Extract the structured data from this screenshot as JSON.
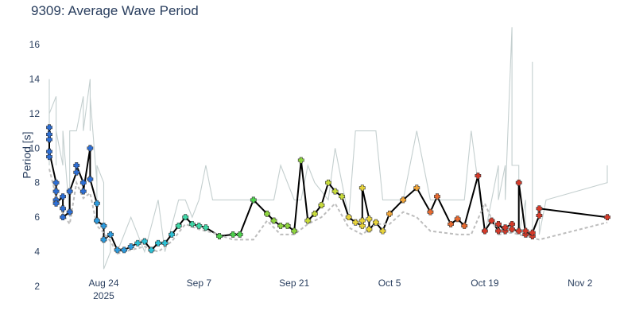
{
  "title": "9309: Average Wave Period",
  "chart_data": {
    "type": "line",
    "title": "9309: Average Wave Period",
    "ylabel": "Period [s]",
    "xlabel": "",
    "x_range": [
      "2025-08-16",
      "2025-11-06"
    ],
    "ylim": [
      2,
      17.2
    ],
    "y_ticks": [
      2,
      4,
      6,
      8,
      10,
      12,
      14,
      16
    ],
    "x_ticks": [
      {
        "date": "2025-08-24",
        "label": "Aug 24",
        "sub": "2025"
      },
      {
        "date": "2025-09-07",
        "label": "Sep 7",
        "sub": ""
      },
      {
        "date": "2025-09-21",
        "label": "Sep 21",
        "sub": ""
      },
      {
        "date": "2025-10-05",
        "label": "Oct 5",
        "sub": ""
      },
      {
        "date": "2025-10-19",
        "label": "Oct 19",
        "sub": ""
      },
      {
        "date": "2025-11-02",
        "label": "Nov 2",
        "sub": ""
      }
    ],
    "colors": {
      "main": "#000000",
      "upper": "#c4cfcf",
      "lower": "#bdbdbd",
      "axis_text": "#2a3f5f"
    },
    "series": [
      {
        "role": "upper-band",
        "style": "solid-gray",
        "x": [
          "2025-08-16",
          "2025-08-16",
          "2025-08-16",
          "2025-08-16",
          "2025-08-16",
          "2025-08-16",
          "2025-08-17",
          "2025-08-17",
          "2025-08-17",
          "2025-08-17",
          "2025-08-18",
          "2025-08-18",
          "2025-08-19",
          "2025-08-19",
          "2025-08-19",
          "2025-08-20",
          "2025-08-20",
          "2025-08-21",
          "2025-08-21",
          "2025-08-22",
          "2025-08-22",
          "2025-08-22",
          "2025-08-23",
          "2025-08-23",
          "2025-08-23",
          "2025-08-24",
          "2025-08-24",
          "2025-08-25",
          "2025-08-25",
          "2025-08-26",
          "2025-08-28",
          "2025-08-30",
          "2025-09-01",
          "2025-09-02",
          "2025-09-04",
          "2025-09-05",
          "2025-09-06",
          "2025-09-07",
          "2025-09-08",
          "2025-09-09",
          "2025-09-12",
          "2025-09-15",
          "2025-09-18",
          "2025-09-19",
          "2025-09-21",
          "2025-09-22",
          "2025-09-23",
          "2025-09-24",
          "2025-09-26",
          "2025-09-27",
          "2025-09-29",
          "2025-09-30",
          "2025-10-01",
          "2025-10-02",
          "2025-10-03",
          "2025-10-04",
          "2025-10-05",
          "2025-10-06",
          "2025-10-07",
          "2025-10-09",
          "2025-10-11",
          "2025-10-12",
          "2025-10-13",
          "2025-10-15",
          "2025-10-16",
          "2025-10-17",
          "2025-10-18",
          "2025-10-19",
          "2025-10-20",
          "2025-10-21",
          "2025-10-21",
          "2025-10-22",
          "2025-10-22",
          "2025-10-23",
          "2025-10-23",
          "2025-10-24",
          "2025-10-24",
          "2025-10-25",
          "2025-10-25",
          "2025-10-26",
          "2025-10-26",
          "2025-10-26",
          "2025-10-27",
          "2025-10-27",
          "2025-10-28",
          "2025-11-06",
          "2025-11-06"
        ],
        "y": [
          9,
          14,
          14,
          13,
          13,
          12,
          13,
          11,
          9,
          11,
          9,
          11,
          6,
          8,
          11,
          11,
          11,
          13,
          11,
          14,
          11,
          13,
          8,
          7,
          9,
          8,
          3,
          4,
          5,
          4,
          6,
          4,
          7,
          4,
          7,
          7,
          6,
          7,
          9,
          7,
          7,
          7,
          7,
          9,
          7,
          7,
          9,
          8,
          7,
          10,
          6,
          11,
          11,
          11,
          11,
          7,
          7,
          7,
          7,
          11,
          7,
          7,
          7,
          7,
          7,
          11,
          8,
          5,
          7,
          9,
          7,
          9,
          7,
          17,
          9,
          9,
          5,
          7,
          5,
          5,
          15,
          5,
          6,
          5,
          7,
          8,
          9
        ]
      },
      {
        "role": "main",
        "style": "solid-black-with-markers",
        "x": [
          "2025-08-16",
          "2025-08-16",
          "2025-08-16",
          "2025-08-16",
          "2025-08-16",
          "2025-08-17",
          "2025-08-17",
          "2025-08-17",
          "2025-08-17",
          "2025-08-18",
          "2025-08-18",
          "2025-08-18",
          "2025-08-19",
          "2025-08-19",
          "2025-08-20",
          "2025-08-20",
          "2025-08-21",
          "2025-08-21",
          "2025-08-22",
          "2025-08-22",
          "2025-08-23",
          "2025-08-23",
          "2025-08-24",
          "2025-08-24",
          "2025-08-25",
          "2025-08-26",
          "2025-08-27",
          "2025-08-28",
          "2025-08-29",
          "2025-08-30",
          "2025-08-31",
          "2025-09-01",
          "2025-09-02",
          "2025-09-03",
          "2025-09-04",
          "2025-09-05",
          "2025-09-06",
          "2025-09-07",
          "2025-09-08",
          "2025-09-10",
          "2025-09-12",
          "2025-09-13",
          "2025-09-15",
          "2025-09-17",
          "2025-09-18",
          "2025-09-19",
          "2025-09-20",
          "2025-09-21",
          "2025-09-22",
          "2025-09-23",
          "2025-09-24",
          "2025-09-25",
          "2025-09-26",
          "2025-09-27",
          "2025-09-28",
          "2025-09-29",
          "2025-09-30",
          "2025-10-01",
          "2025-10-01",
          "2025-10-01",
          "2025-10-02",
          "2025-10-02",
          "2025-10-03",
          "2025-10-04",
          "2025-10-05",
          "2025-10-07",
          "2025-10-09",
          "2025-10-11",
          "2025-10-12",
          "2025-10-14",
          "2025-10-15",
          "2025-10-16",
          "2025-10-18",
          "2025-10-19",
          "2025-10-20",
          "2025-10-21",
          "2025-10-21",
          "2025-10-22",
          "2025-10-22",
          "2025-10-23",
          "2025-10-23",
          "2025-10-24",
          "2025-10-24",
          "2025-10-25",
          "2025-10-25",
          "2025-10-26",
          "2025-10-26",
          "2025-10-27",
          "2025-10-27",
          "2025-11-06"
        ],
        "y": [
          9.5,
          11.2,
          10.5,
          10.8,
          9.8,
          8.0,
          7.5,
          7.0,
          6.8,
          7.2,
          6.5,
          6.0,
          6.3,
          7.5,
          8.6,
          9.0,
          8.0,
          7.5,
          10.0,
          8.2,
          6.8,
          5.8,
          5.5,
          4.7,
          5.0,
          4.1,
          4.1,
          4.3,
          4.5,
          4.6,
          4.1,
          4.5,
          4.5,
          5.0,
          5.5,
          6.0,
          5.6,
          5.5,
          5.4,
          4.9,
          5.0,
          5.0,
          7.0,
          6.2,
          5.8,
          5.5,
          5.5,
          5.2,
          9.3,
          5.8,
          6.2,
          6.7,
          8.0,
          7.5,
          7.2,
          6.0,
          5.7,
          5.5,
          5.8,
          7.7,
          5.9,
          5.3,
          5.7,
          5.2,
          6.2,
          7.0,
          7.7,
          6.3,
          7.2,
          5.6,
          5.9,
          5.5,
          8.4,
          5.2,
          5.8,
          5.2,
          5.6,
          5.2,
          5.4,
          5.6,
          5.3,
          5.2,
          8.0,
          5.0,
          5.2,
          4.9,
          5.1,
          6.1,
          6.5,
          6.0
        ]
      },
      {
        "role": "lower-band",
        "style": "dashed-gray",
        "x": [
          "2025-08-16",
          "2025-08-17",
          "2025-08-18",
          "2025-08-19",
          "2025-08-20",
          "2025-08-21",
          "2025-08-22",
          "2025-08-23",
          "2025-08-24",
          "2025-08-25",
          "2025-08-26",
          "2025-08-28",
          "2025-08-30",
          "2025-09-01",
          "2025-09-03",
          "2025-09-05",
          "2025-09-07",
          "2025-09-09",
          "2025-09-12",
          "2025-09-15",
          "2025-09-17",
          "2025-09-19",
          "2025-09-21",
          "2025-09-23",
          "2025-09-25",
          "2025-09-27",
          "2025-09-29",
          "2025-10-01",
          "2025-10-03",
          "2025-10-05",
          "2025-10-07",
          "2025-10-09",
          "2025-10-11",
          "2025-10-13",
          "2025-10-15",
          "2025-10-17",
          "2025-10-19",
          "2025-10-21",
          "2025-10-23",
          "2025-10-25",
          "2025-10-27",
          "2025-10-28",
          "2025-11-06"
        ],
        "y": [
          8.8,
          7.2,
          6.2,
          5.6,
          8.0,
          7.1,
          7.4,
          5.5,
          5.1,
          4.6,
          3.9,
          4.1,
          4.3,
          4.0,
          4.6,
          5.6,
          5.3,
          5.1,
          4.7,
          4.7,
          5.8,
          5.0,
          5.0,
          5.6,
          6.0,
          6.8,
          5.4,
          5.0,
          5.6,
          5.6,
          6.3,
          6.0,
          5.2,
          5.1,
          5.0,
          5.0,
          6.8,
          5.0,
          5.1,
          4.9,
          4.7,
          4.8,
          5.7
        ]
      }
    ],
    "marker_colors": [
      "#2d6fd6",
      "#2d9ce0",
      "#2cc2d6",
      "#3fd9a8",
      "#4ed24e",
      "#8fd63e",
      "#c8dc3a",
      "#e8d43a",
      "#f0a538",
      "#e86a30",
      "#d63a2a"
    ]
  }
}
